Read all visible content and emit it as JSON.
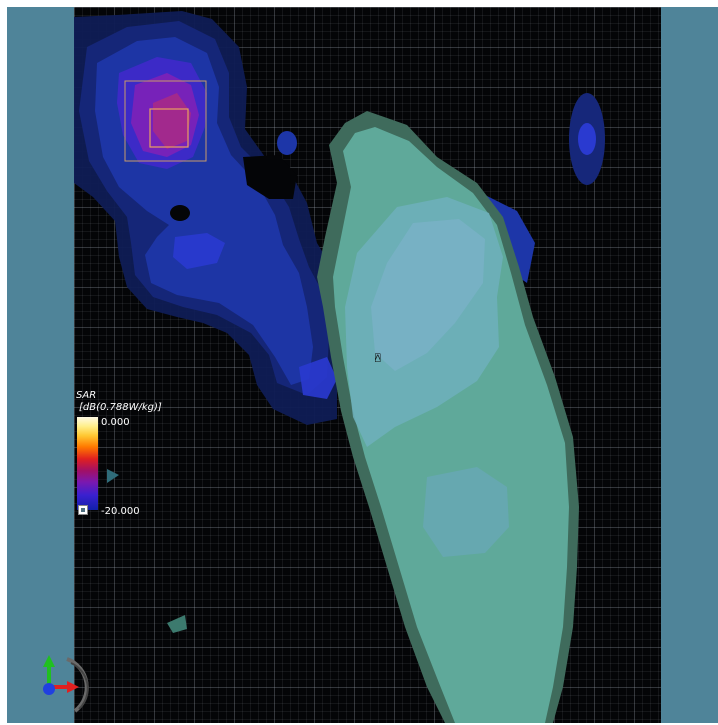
{
  "legend": {
    "title": "SAR",
    "unit": "[dB(0.788W/kg)]",
    "max_label": "0.000",
    "min_label": "-20.000",
    "colors": [
      "#fffbe6",
      "#ffc832",
      "#e02020",
      "#7a18b0",
      "#1020a8"
    ]
  },
  "probe": {
    "label": "⍓"
  },
  "axes": {
    "x_color": "#e02020",
    "y_color": "#20c020",
    "z_color": "#2040e0"
  },
  "colors": {
    "background_panel": "#4f8499",
    "viewport_background": "#040507",
    "phantom_fill": "#5fa99a",
    "peak_region_box": "#c89a6a"
  }
}
